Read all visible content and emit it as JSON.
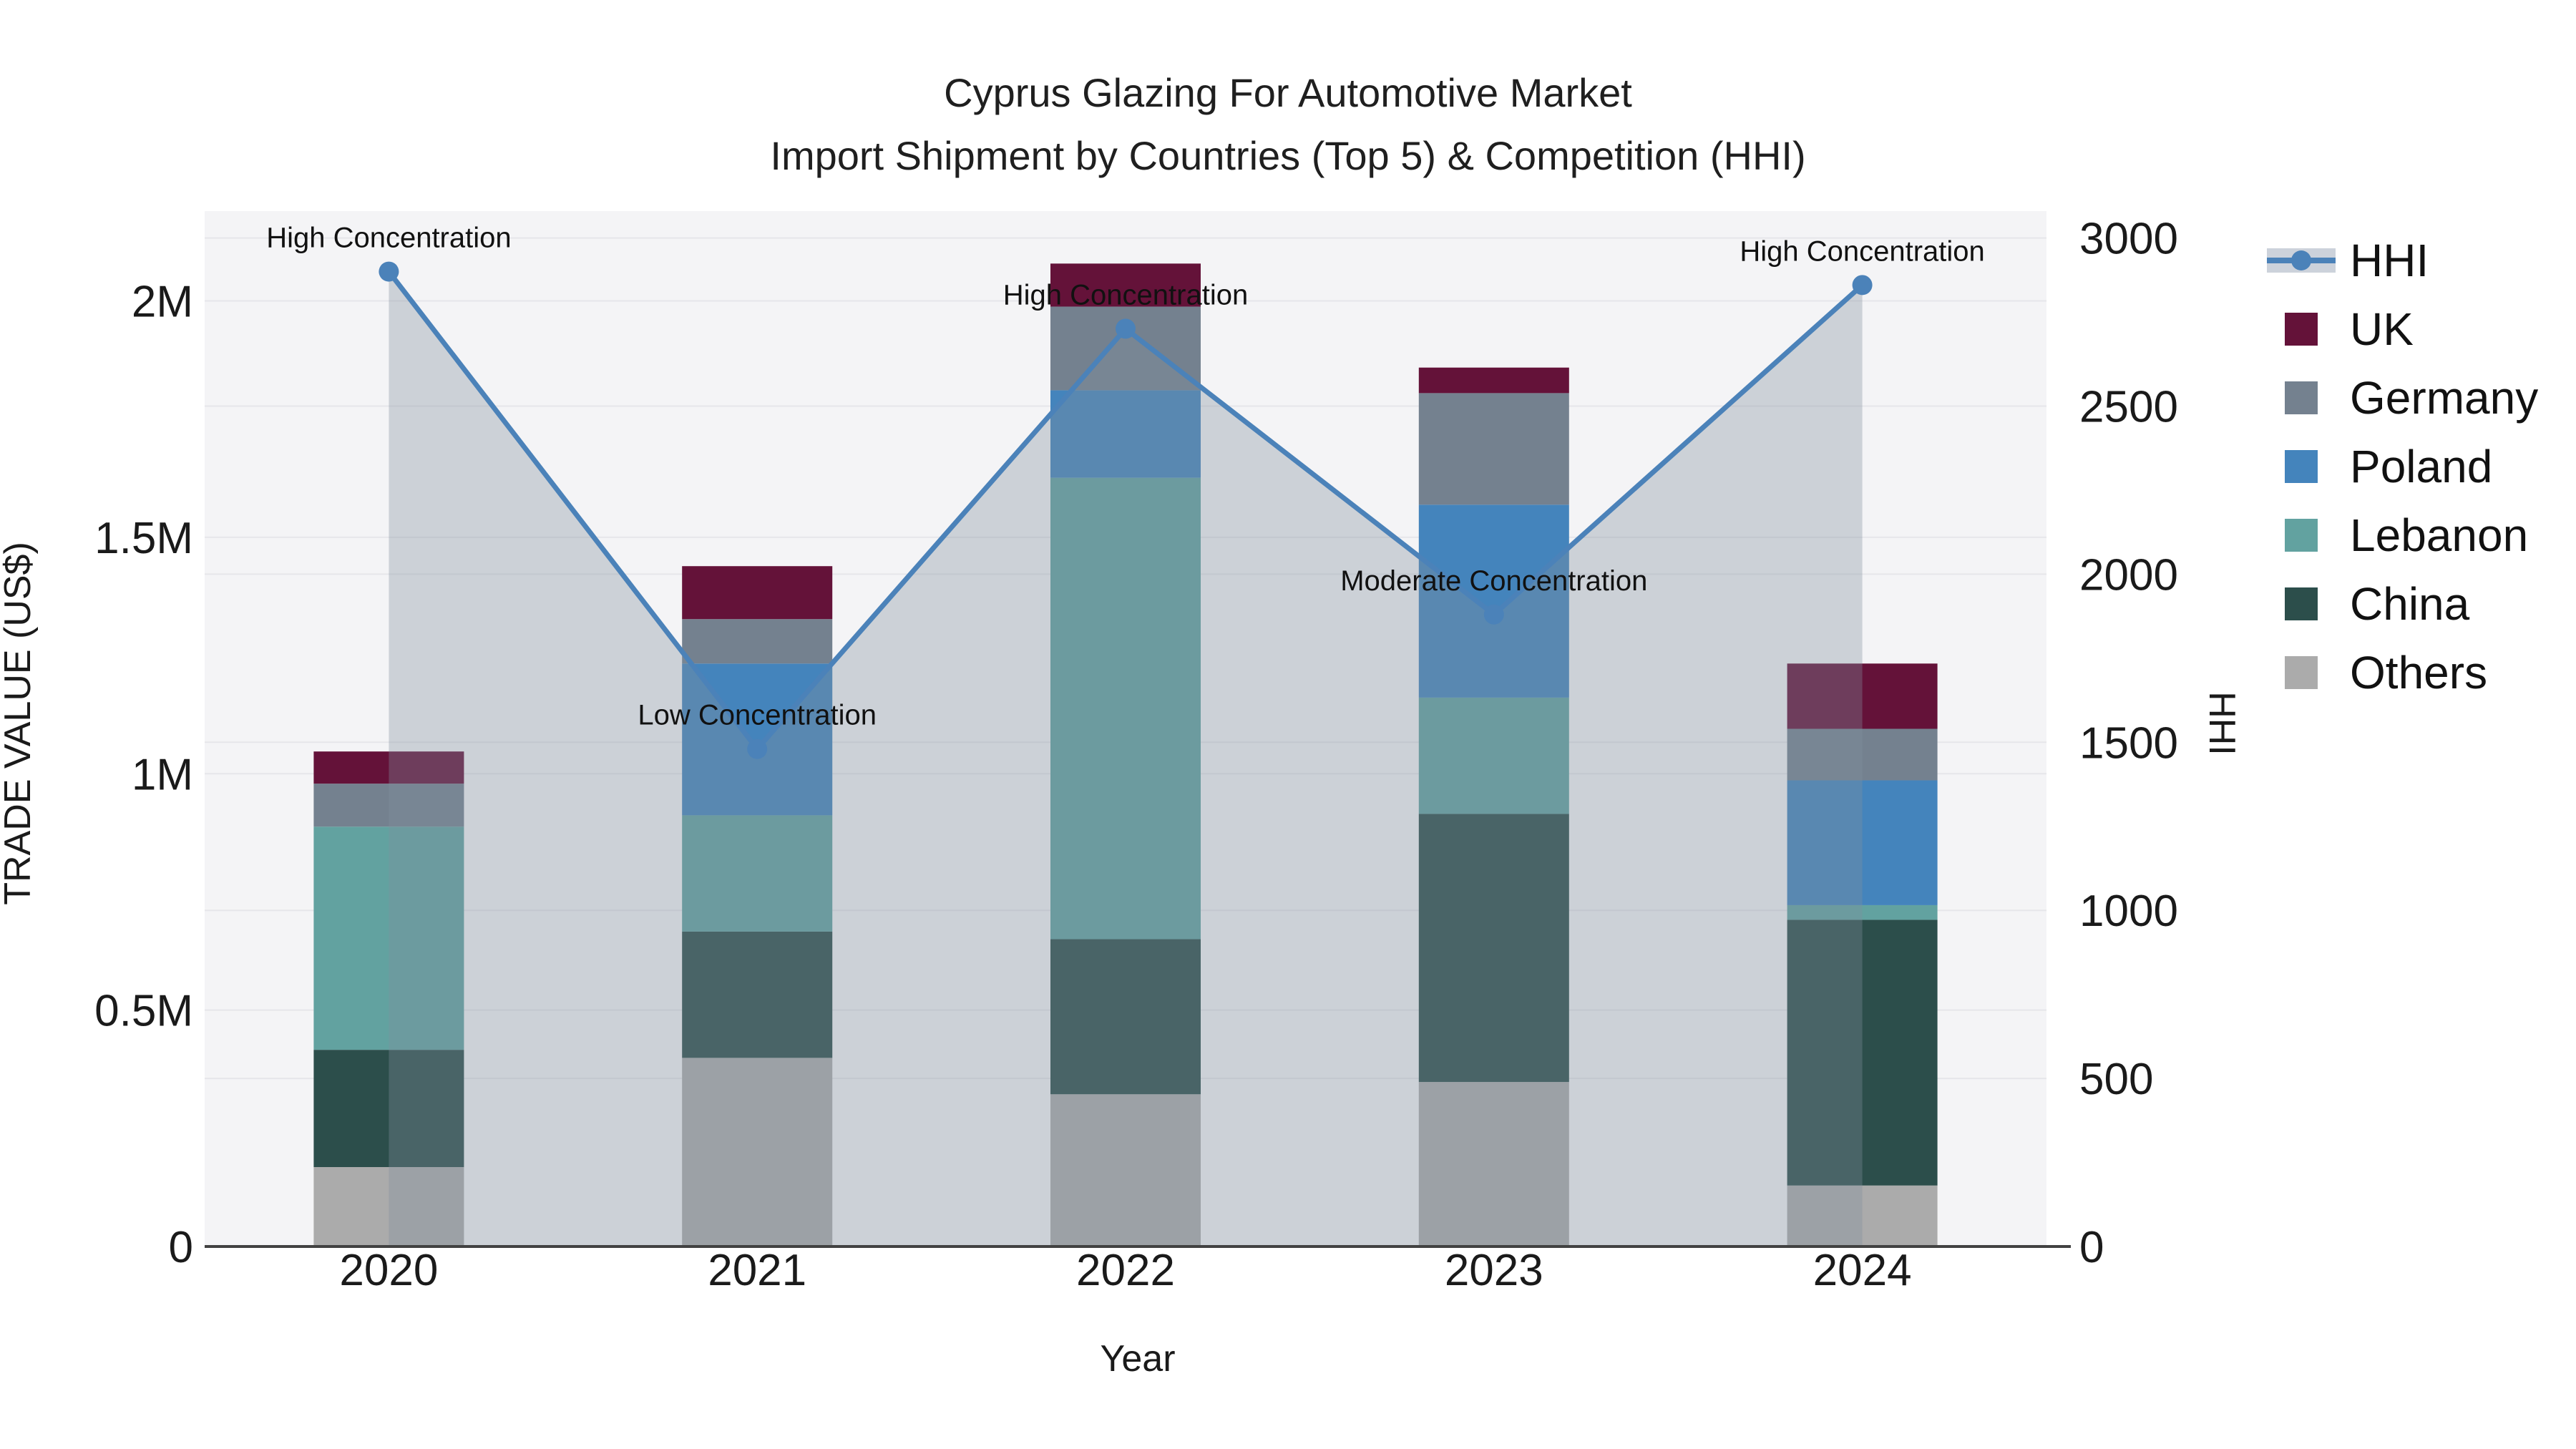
{
  "title": {
    "line1": "Cyprus Glazing For Automotive Market",
    "line2": "Import Shipment by Countries (Top 5) & Competition (HHI)"
  },
  "axes": {
    "x": {
      "title": "Year"
    },
    "y_left": {
      "title": "TRADE VALUE (US$)",
      "tick_labels": [
        "0",
        "0.5M",
        "1M",
        "1.5M",
        "2M"
      ],
      "tick_values": [
        0,
        500000,
        1000000,
        1500000,
        2000000
      ]
    },
    "y_right": {
      "title": "HHI",
      "tick_labels": [
        "0",
        "500",
        "1000",
        "1500",
        "2000",
        "2500",
        "3000"
      ],
      "tick_values": [
        0,
        500,
        1000,
        1500,
        2000,
        2500,
        3000
      ]
    }
  },
  "legend": {
    "items": [
      {
        "label": "HHI",
        "type": "line",
        "color": "#4b82b9"
      },
      {
        "label": "UK",
        "type": "box",
        "color": "#641239"
      },
      {
        "label": "Germany",
        "type": "box",
        "color": "#74818f"
      },
      {
        "label": "Poland",
        "type": "box",
        "color": "#4484bc"
      },
      {
        "label": "Lebanon",
        "type": "box",
        "color": "#62a2a0"
      },
      {
        "label": "China",
        "type": "box",
        "color": "#2c4e4b"
      },
      {
        "label": "Others",
        "type": "box",
        "color": "#ababab"
      }
    ]
  },
  "chart_data": {
    "type": "stacked-bar+line",
    "title": "Cyprus Glazing For Automotive Market — Import Shipment by Countries (Top 5) & Competition (HHI)",
    "categories": [
      "2020",
      "2021",
      "2022",
      "2023",
      "2024"
    ],
    "xlabel": "Year",
    "ylabel_left": "TRADE VALUE (US$)",
    "ylabel_right": "HHI",
    "y_left_range": [
      0,
      2190000
    ],
    "y_right_range": [
      0,
      3080
    ],
    "grid": true,
    "legend_position": "right",
    "bar_series": [
      {
        "name": "Others",
        "color": "#ababab",
        "values": [
          168000,
          399000,
          322000,
          348000,
          129000
        ]
      },
      {
        "name": "China",
        "color": "#2c4e4b",
        "values": [
          248000,
          267000,
          328000,
          567000,
          562000
        ]
      },
      {
        "name": "Lebanon",
        "color": "#62a2a0",
        "values": [
          472000,
          246000,
          976000,
          246000,
          31000
        ]
      },
      {
        "name": "Poland",
        "color": "#4484bc",
        "values": [
          0,
          321000,
          185000,
          408000,
          264000
        ]
      },
      {
        "name": "Germany",
        "color": "#74818f",
        "values": [
          91000,
          94000,
          177000,
          236000,
          109000
        ]
      },
      {
        "name": "UK",
        "color": "#641239",
        "values": [
          68000,
          112000,
          91000,
          54000,
          138000
        ]
      }
    ],
    "bar_totals": [
      1047000,
      1439000,
      2079000,
      1859000,
      1233000
    ],
    "line_series": {
      "name": "HHI",
      "color": "#4b82b9",
      "fill_color": "rgba(130,142,158,0.35)",
      "values": [
        2900,
        1480,
        2730,
        1880,
        2860
      ]
    },
    "annotations": [
      {
        "category": "2020",
        "label": "High Concentration"
      },
      {
        "category": "2021",
        "label": "Low Concentration"
      },
      {
        "category": "2022",
        "label": "High Concentration"
      },
      {
        "category": "2023",
        "label": "Moderate Concentration"
      },
      {
        "category": "2024",
        "label": "High Concentration"
      }
    ]
  },
  "style": {
    "plot_bg": "#f4f4f6",
    "grid_color": "#e6e6ea",
    "axis_line_color": "#424242",
    "tick_color": "#1a1a1a",
    "annotation_color": "#111111"
  }
}
